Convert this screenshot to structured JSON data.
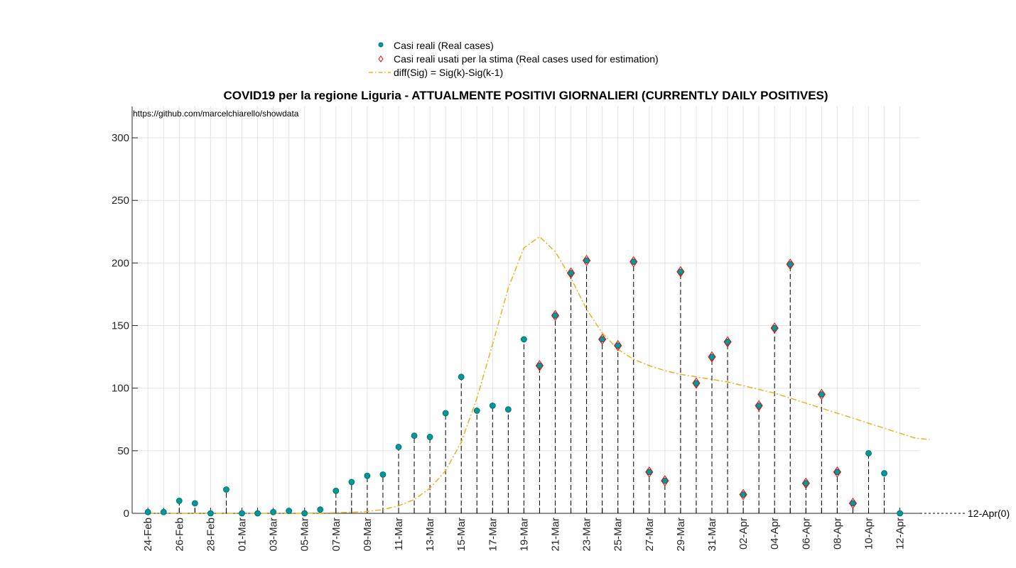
{
  "chart_data": {
    "type": "scatter",
    "title": "COVID19 per la regione Liguria - ATTUALMENTE POSITIVI GIORNALIERI (CURRENTLY DAILY POSITIVES)",
    "source_text": "https://github.com/marcelchiarello/showdata",
    "xlabel": "",
    "ylabel": "",
    "ylim": [
      0,
      325
    ],
    "yticks": [
      0,
      50,
      100,
      150,
      200,
      250,
      300
    ],
    "grid": true,
    "legend_position": "top-center",
    "dates": [
      "24-Feb",
      "25-Feb",
      "26-Feb",
      "27-Feb",
      "28-Feb",
      "29-Feb",
      "01-Mar",
      "02-Mar",
      "03-Mar",
      "04-Mar",
      "05-Mar",
      "06-Mar",
      "07-Mar",
      "08-Mar",
      "09-Mar",
      "10-Mar",
      "11-Mar",
      "12-Mar",
      "13-Mar",
      "14-Mar",
      "15-Mar",
      "16-Mar",
      "17-Mar",
      "18-Mar",
      "19-Mar",
      "20-Mar",
      "21-Mar",
      "22-Mar",
      "23-Mar",
      "24-Mar",
      "25-Mar",
      "26-Mar",
      "27-Mar",
      "28-Mar",
      "29-Mar",
      "30-Mar",
      "31-Mar",
      "01-Apr",
      "02-Apr",
      "03-Apr",
      "04-Apr",
      "05-Apr",
      "06-Apr",
      "07-Apr",
      "08-Apr",
      "09-Apr",
      "10-Apr",
      "11-Apr",
      "12-Apr"
    ],
    "x_tick_labels": [
      "24-Feb",
      "26-Feb",
      "28-Feb",
      "01-Mar",
      "03-Mar",
      "05-Mar",
      "07-Mar",
      "09-Mar",
      "11-Mar",
      "13-Mar",
      "15-Mar",
      "17-Mar",
      "19-Mar",
      "21-Mar",
      "23-Mar",
      "25-Mar",
      "27-Mar",
      "29-Mar",
      "31-Mar",
      "02-Apr",
      "04-Apr",
      "06-Apr",
      "08-Apr",
      "10-Apr",
      "12-Apr"
    ],
    "series": [
      {
        "name": "Casi reali (Real cases)",
        "color": "#009999",
        "marker": "circle",
        "values": [
          1,
          1,
          10,
          8,
          0,
          19,
          0,
          0,
          1,
          2,
          0,
          3,
          18,
          25,
          30,
          31,
          53,
          62,
          61,
          80,
          109,
          82,
          86,
          83,
          139,
          118,
          158,
          192,
          202,
          139,
          134,
          201,
          33,
          26,
          193,
          104,
          125,
          137,
          15,
          86,
          148,
          199,
          24,
          95,
          33,
          8,
          48,
          32,
          0
        ]
      },
      {
        "name": "Casi reali usati per la stima (Real cases used for estimation)",
        "color": "#ff0000",
        "marker": "diamond",
        "dates": [
          "20-Mar",
          "21-Mar",
          "22-Mar",
          "23-Mar",
          "24-Mar",
          "25-Mar",
          "26-Mar",
          "27-Mar",
          "28-Mar",
          "29-Mar",
          "30-Mar",
          "31-Mar",
          "01-Apr",
          "02-Apr",
          "03-Apr",
          "04-Apr",
          "05-Apr",
          "06-Apr",
          "07-Apr",
          "08-Apr",
          "09-Apr"
        ],
        "values": [
          118,
          158,
          192,
          202,
          139,
          134,
          201,
          33,
          26,
          193,
          104,
          125,
          137,
          15,
          86,
          148,
          199,
          24,
          95,
          33,
          8
        ]
      },
      {
        "name": "diff(Sig) = Sig(k)-Sig(k-1)",
        "color": "#EDB120",
        "line_style": "dash-dot",
        "x": [
          0,
          2,
          4,
          6,
          8,
          10,
          12,
          13,
          14,
          15,
          16,
          17,
          18,
          19,
          20,
          21,
          22,
          23,
          24,
          25,
          26,
          27,
          28,
          29,
          30,
          31,
          32,
          33,
          34,
          35,
          36,
          37,
          38,
          39,
          40,
          41,
          42,
          43,
          44,
          45,
          46,
          47,
          48,
          49,
          49.9
        ],
        "values": [
          0,
          0,
          0,
          0,
          0,
          0,
          0.5,
          0.8,
          1.5,
          3,
          6,
          11,
          20,
          34,
          57,
          92,
          135,
          180,
          212,
          221,
          209,
          188,
          163,
          144,
          131,
          123,
          118,
          114,
          111,
          109,
          107,
          105,
          102,
          99,
          96,
          92,
          88,
          84,
          80,
          76,
          72,
          68,
          64,
          60,
          59
        ]
      }
    ],
    "stems_from_date": "20-Mar",
    "annotation": "12-Apr(0)"
  }
}
